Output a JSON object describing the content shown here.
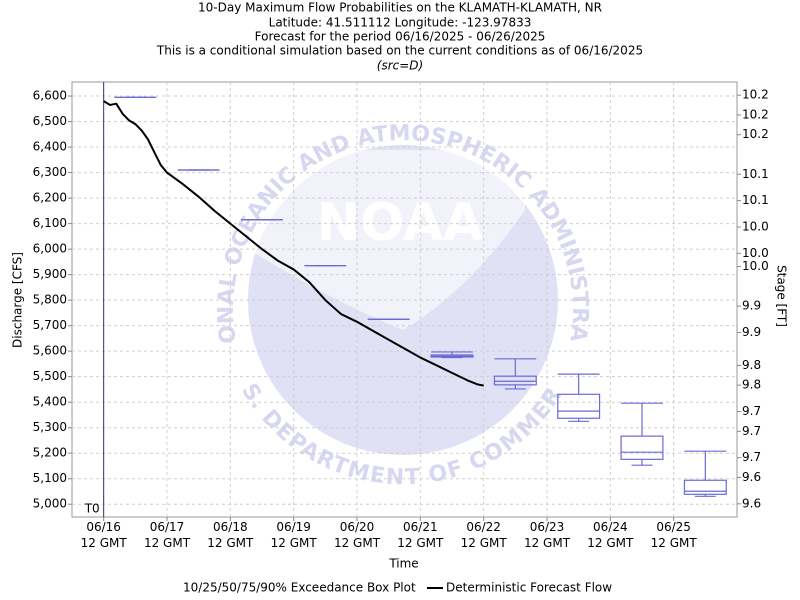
{
  "chart_data": {
    "type": "box",
    "title": "10-Day Maximum Flow Probabilities on the KLAMATH-KLAMATH, NR",
    "subtitle": [
      "Latitude: 41.511112 Longitude: -123.97833",
      "Forecast for the period 06/16/2025 - 06/26/2025",
      "This is a conditional simulation based on the current conditions as of 06/16/2025",
      "(src=D)"
    ],
    "x_label": "Time",
    "y_label": "Discharge [CFS]",
    "y2_label": "Stage [FT]",
    "watermark": {
      "logo": "NOAA",
      "top": "NATIONAL OCEANIC AND ATMOSPHERIC ADMINISTRATION",
      "bottom": "U.S. DEPARTMENT OF COMMERCE"
    },
    "markers": [
      {
        "x": 0,
        "label": "T0"
      }
    ],
    "grid": true,
    "xlim": [
      -0.5,
      10
    ],
    "xticks": [
      {
        "value": 0,
        "label": "06/16\n12 GMT"
      },
      {
        "value": 1,
        "label": "06/17\n12 GMT"
      },
      {
        "value": 2,
        "label": "06/18\n12 GMT"
      },
      {
        "value": 3,
        "label": "06/19\n12 GMT"
      },
      {
        "value": 4,
        "label": "06/20\n12 GMT"
      },
      {
        "value": 5,
        "label": "06/21\n12 GMT"
      },
      {
        "value": 6,
        "label": "06/22\n12 GMT"
      },
      {
        "value": 7,
        "label": "06/23\n12 GMT"
      },
      {
        "value": 8,
        "label": "06/24\n12 GMT"
      },
      {
        "value": 9,
        "label": "06/25\n12 GMT"
      }
    ],
    "ylim": [
      4950,
      6655
    ],
    "yticks": [
      {
        "value": 5000,
        "label": "5,000"
      },
      {
        "value": 5100,
        "label": "5,100"
      },
      {
        "value": 5200,
        "label": "5,200"
      },
      {
        "value": 5300,
        "label": "5,300"
      },
      {
        "value": 5400,
        "label": "5,400"
      },
      {
        "value": 5500,
        "label": "5,500"
      },
      {
        "value": 5600,
        "label": "5,600"
      },
      {
        "value": 5700,
        "label": "5,700"
      },
      {
        "value": 5800,
        "label": "5,800"
      },
      {
        "value": 5900,
        "label": "5,900"
      },
      {
        "value": 6000,
        "label": "6,000"
      },
      {
        "value": 6100,
        "label": "6,100"
      },
      {
        "value": 6200,
        "label": "6,200"
      },
      {
        "value": 6300,
        "label": "6,300"
      },
      {
        "value": 6400,
        "label": "6,400"
      },
      {
        "value": 6500,
        "label": "6,500"
      },
      {
        "value": 6600,
        "label": "6,600"
      }
    ],
    "y2lim": [
      9.58,
      10.24
    ],
    "y2ticks": [
      {
        "value": 9.6,
        "label": "9.6"
      },
      {
        "value": 9.64,
        "label": "9.6"
      },
      {
        "value": 9.67,
        "label": "9.7"
      },
      {
        "value": 9.71,
        "label": "9.7"
      },
      {
        "value": 9.74,
        "label": "9.7"
      },
      {
        "value": 9.78,
        "label": "9.8"
      },
      {
        "value": 9.81,
        "label": "9.8"
      },
      {
        "value": 9.86,
        "label": "9.9"
      },
      {
        "value": 9.9,
        "label": "9.9"
      },
      {
        "value": 9.96,
        "label": "10.0"
      },
      {
        "value": 9.98,
        "label": "10.0"
      },
      {
        "value": 10.02,
        "label": "10.0"
      },
      {
        "value": 10.06,
        "label": "10.1"
      },
      {
        "value": 10.1,
        "label": "10.1"
      },
      {
        "value": 10.16,
        "label": "10.2"
      },
      {
        "value": 10.19,
        "label": "10.2"
      },
      {
        "value": 10.22,
        "label": "10.2"
      }
    ],
    "series": [
      {
        "name": "10/25/50/75/90% Exceedance Box Plot",
        "type": "box",
        "color": "#6a6ad6",
        "x": [
          0.5,
          1.5,
          2.5,
          3.5,
          4.5,
          5.5,
          6.5,
          7.5,
          8.5,
          9.5
        ],
        "p10": [
          6595,
          6310,
          6115,
          5935,
          5725,
          5575,
          5452,
          5325,
          5153,
          5031
        ],
        "p25": [
          6595,
          6310,
          6115,
          5935,
          5725,
          5577,
          5468,
          5337,
          5176,
          5039
        ],
        "p50": [
          6595,
          6310,
          6115,
          5935,
          5725,
          5580,
          5482,
          5365,
          5204,
          5051
        ],
        "p75": [
          6595,
          6310,
          6115,
          5935,
          5725,
          5585,
          5502,
          5431,
          5267,
          5094
        ],
        "p90": [
          6595,
          6310,
          6115,
          5935,
          5725,
          5597,
          5570,
          5510,
          5396,
          5208
        ]
      },
      {
        "name": "Deterministic Forecast Flow",
        "type": "line",
        "color": "#000000",
        "x": [
          0,
          0.1,
          0.2,
          0.3,
          0.4,
          0.5,
          0.6,
          0.7,
          0.8,
          0.9,
          1.0,
          1.25,
          1.5,
          1.75,
          2.0,
          2.25,
          2.5,
          2.75,
          3.0,
          3.25,
          3.5,
          3.75,
          4.0,
          4.25,
          4.5,
          4.75,
          5.0,
          5.25,
          5.5,
          5.75,
          5.9,
          6.0
        ],
        "values": [
          6580,
          6565,
          6570,
          6530,
          6505,
          6490,
          6465,
          6430,
          6380,
          6330,
          6300,
          6255,
          6205,
          6150,
          6100,
          6050,
          6000,
          5955,
          5920,
          5870,
          5800,
          5745,
          5715,
          5680,
          5645,
          5610,
          5575,
          5545,
          5515,
          5485,
          5470,
          5465
        ]
      }
    ]
  }
}
